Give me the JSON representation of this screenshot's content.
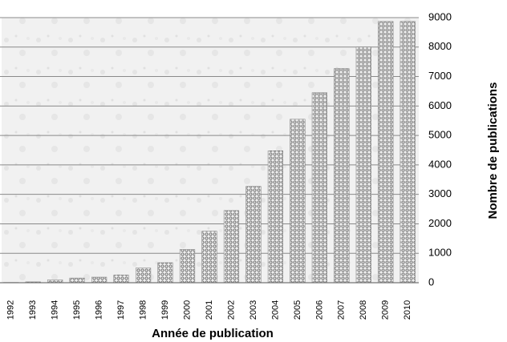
{
  "chart_data": {
    "type": "bar",
    "x_label": "Année de publication",
    "y_label": "Nombre de publications",
    "categories": [
      "1992",
      "1993",
      "1994",
      "1995",
      "1996",
      "1997",
      "1998",
      "1999",
      "2000",
      "2001",
      "2002",
      "2003",
      "2004",
      "2005",
      "2006",
      "2007",
      "2008",
      "2009",
      "2010"
    ],
    "values": [
      10,
      30,
      100,
      160,
      190,
      260,
      500,
      680,
      1130,
      1750,
      2450,
      3270,
      4480,
      5550,
      6450,
      7270,
      8000,
      8870,
      8870
    ],
    "color": "#9a9a9a",
    "ylim": [
      0,
      9000
    ],
    "yticks": [
      0,
      1000,
      2000,
      3000,
      4000,
      5000,
      6000,
      7000,
      8000,
      9000
    ],
    "grid": true,
    "y_axis_side": "right"
  }
}
